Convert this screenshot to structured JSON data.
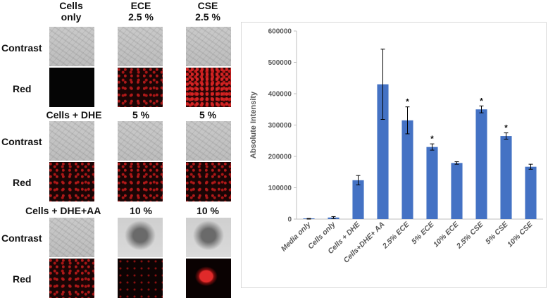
{
  "figure": {
    "column_headers": [
      [
        "Cells",
        "only"
      ],
      [
        "ECE",
        "2.5 %"
      ],
      [
        "CSE",
        "2.5 %"
      ]
    ],
    "group_labels": [
      "Cells + DHE",
      "5 %",
      "5 %",
      "Cells + DHE+AA",
      "10 %",
      "10 %"
    ],
    "row_labels": [
      "Contrast",
      "Red",
      "Contrast",
      "Red",
      "Contrast",
      "Red"
    ]
  },
  "chart_data": {
    "type": "bar",
    "categories": [
      "Media only",
      "Cells only",
      "Cells + DHE",
      "Cells+DHE+ AA",
      "2.5% ECE",
      "5% ECE",
      "10% ECE",
      "2.5% CSE",
      "5% CSE",
      "10% CSE"
    ],
    "values": [
      1000,
      5000,
      124000,
      430000,
      315000,
      230000,
      179000,
      350000,
      265000,
      167000
    ],
    "errors": [
      1000,
      3000,
      15000,
      112000,
      43000,
      10000,
      4000,
      11000,
      10000,
      8000
    ],
    "significance": [
      "",
      "",
      "",
      "",
      "*",
      "*",
      "",
      "*",
      "*",
      ""
    ],
    "ylabel": "Absolute Intensity",
    "ylim": [
      0,
      600000
    ],
    "yticks": [
      "0",
      "100000",
      "200000",
      "300000",
      "400000",
      "500000",
      "600000"
    ],
    "bar_color": "#4472C4",
    "grid": false
  }
}
